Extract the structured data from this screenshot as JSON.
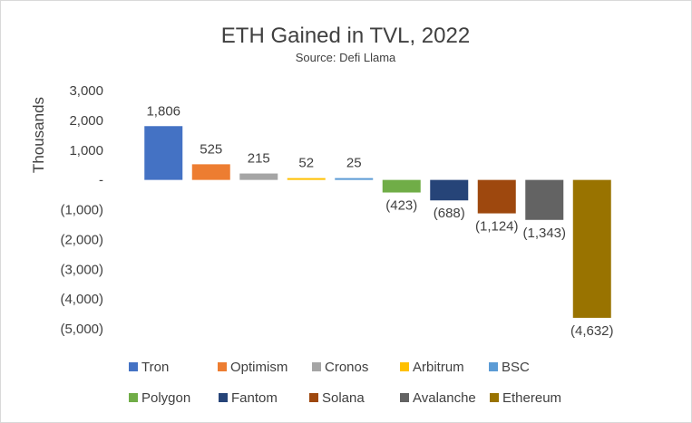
{
  "chart_data": {
    "type": "bar",
    "title": "ETH Gained in TVL, 2022",
    "subtitle": "Source: Defi Llama",
    "ylabel": "Thousands",
    "xlabel": "",
    "ylim": [
      -5000,
      3000
    ],
    "yticks": [
      {
        "value": 3000,
        "label": "3,000"
      },
      {
        "value": 2000,
        "label": "2,000"
      },
      {
        "value": 1000,
        "label": "1,000"
      },
      {
        "value": 0,
        "label": "-"
      },
      {
        "value": -1000,
        "label": "(1,000)"
      },
      {
        "value": -2000,
        "label": "(2,000)"
      },
      {
        "value": -3000,
        "label": "(3,000)"
      },
      {
        "value": -4000,
        "label": "(4,000)"
      },
      {
        "value": -5000,
        "label": "(5,000)"
      }
    ],
    "grid": false,
    "legend_position": "bottom",
    "categories": [
      "Tron",
      "Optimism",
      "Cronos",
      "Arbitrum",
      "BSC",
      "Polygon",
      "Fantom",
      "Solana",
      "Avalanche",
      "Ethereum"
    ],
    "values": [
      1806,
      525,
      215,
      52,
      25,
      -423,
      -688,
      -1124,
      -1343,
      -4632
    ],
    "data_labels": [
      "1,806",
      "525",
      "215",
      "52",
      "25",
      "(423)",
      "(688)",
      "(1,124)",
      "(1,343)",
      "(4,632)"
    ],
    "colors": [
      "#4472C4",
      "#ED7D31",
      "#A5A5A5",
      "#FFC000",
      "#5B9BD5",
      "#70AD47",
      "#264478",
      "#9E480E",
      "#636363",
      "#997300"
    ]
  }
}
